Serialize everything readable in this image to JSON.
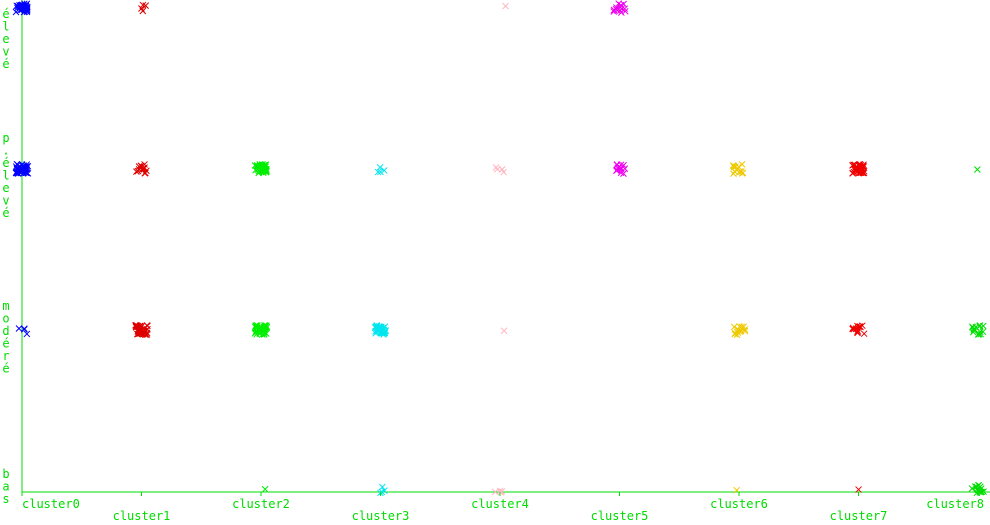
{
  "chart_data": {
    "type": "scatter",
    "title": "",
    "xlabel": "",
    "ylabel": "",
    "axis_color": "#00dd00",
    "grid": false,
    "legend": "none",
    "marker": "x",
    "categories": [
      "cluster0",
      "cluster1",
      "cluster2",
      "cluster3",
      "cluster4",
      "cluster5",
      "cluster6",
      "cluster7",
      "cluster8"
    ],
    "y_levels": [
      "bas",
      "modéré",
      "p.élevé",
      "élevé"
    ],
    "xlim": [
      0,
      8
    ],
    "ylim": [
      0,
      3
    ],
    "clusters": [
      {
        "name": "cluster0",
        "color": "#0000ff",
        "points": [
          {
            "y": 3,
            "n": "many"
          },
          {
            "y": 2,
            "n": "many"
          },
          {
            "y": 1,
            "n": "few"
          }
        ]
      },
      {
        "name": "cluster1",
        "color": "#dd0000",
        "points": [
          {
            "y": 3,
            "n": "few"
          },
          {
            "y": 2,
            "n": "some"
          },
          {
            "y": 1,
            "n": "many"
          }
        ]
      },
      {
        "name": "cluster2",
        "color": "#00ee00",
        "points": [
          {
            "y": 2,
            "n": "many"
          },
          {
            "y": 1,
            "n": "many"
          },
          {
            "y": 0,
            "n": "one"
          }
        ]
      },
      {
        "name": "cluster3",
        "color": "#00e5ee",
        "points": [
          {
            "y": 2,
            "n": "few"
          },
          {
            "y": 1,
            "n": "many"
          },
          {
            "y": 0,
            "n": "few"
          }
        ]
      },
      {
        "name": "cluster4",
        "color": "#ffb6c1",
        "points": [
          {
            "y": 3,
            "n": "one"
          },
          {
            "y": 2,
            "n": "few"
          },
          {
            "y": 1,
            "n": "one"
          },
          {
            "y": 0,
            "n": "few"
          }
        ]
      },
      {
        "name": "cluster5",
        "color": "#ee00ee",
        "points": [
          {
            "y": 3,
            "n": "some"
          },
          {
            "y": 2,
            "n": "some"
          }
        ]
      },
      {
        "name": "cluster6",
        "color": "#eec900",
        "points": [
          {
            "y": 2,
            "n": "some"
          },
          {
            "y": 1,
            "n": "some"
          },
          {
            "y": 0,
            "n": "one"
          }
        ]
      },
      {
        "name": "cluster7",
        "color": "#ee0000",
        "points": [
          {
            "y": 2,
            "n": "many"
          },
          {
            "y": 1,
            "n": "some"
          },
          {
            "y": 0,
            "n": "one"
          }
        ]
      },
      {
        "name": "cluster8",
        "color": "#00dd00",
        "points": [
          {
            "y": 2,
            "n": "one"
          },
          {
            "y": 1,
            "n": "some"
          },
          {
            "y": 0,
            "n": "some"
          }
        ]
      }
    ]
  }
}
